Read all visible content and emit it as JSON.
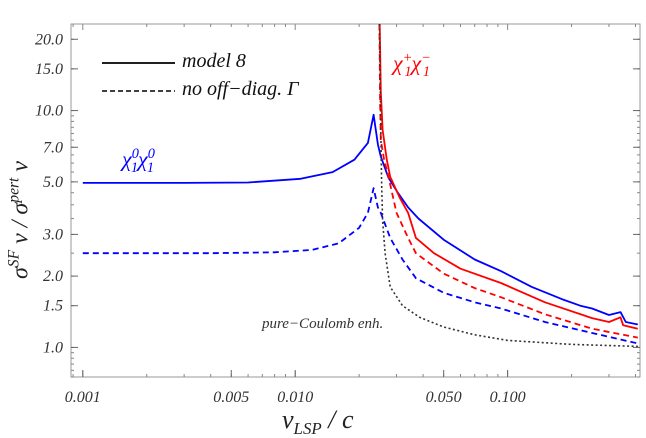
{
  "chart_data": {
    "type": "line",
    "xlabel": {
      "main": "v",
      "sub": "LSP",
      "rest": " / c"
    },
    "ylabel": {
      "s1": "σ",
      "sup1": "SF",
      "mid": " v / σ",
      "sup2": "pert",
      "end": " v"
    },
    "x_scale": "log",
    "y_scale": "log",
    "xlim": [
      0.00088,
      0.42
    ],
    "ylim": [
      0.75,
      23.2
    ],
    "grid": false,
    "x_ticks": [
      {
        "v": 0.001,
        "label": "0.001"
      },
      {
        "v": 0.005,
        "label": "0.005"
      },
      {
        "v": 0.01,
        "label": "0.010"
      },
      {
        "v": 0.05,
        "label": "0.050"
      },
      {
        "v": 0.1,
        "label": "0.100"
      }
    ],
    "y_ticks": [
      {
        "v": 1,
        "label": "1.0"
      },
      {
        "v": 1.5,
        "label": "1.5"
      },
      {
        "v": 2,
        "label": "2.0"
      },
      {
        "v": 3,
        "label": "3.0"
      },
      {
        "v": 5,
        "label": "5.0"
      },
      {
        "v": 7,
        "label": "7.0"
      },
      {
        "v": 10,
        "label": "10.0"
      },
      {
        "v": 15,
        "label": "15.0"
      },
      {
        "v": 20,
        "label": "20.0"
      }
    ],
    "legend": {
      "placement": "top-left",
      "entries": [
        {
          "label": "model 8",
          "style": "solid"
        },
        {
          "label": "no off−diag. Γ",
          "style": "dashed"
        }
      ]
    },
    "annotations": {
      "neutral": {
        "base1": "χ",
        "sup1": "0",
        "sub1": "1",
        "base2": "χ",
        "sup2": "0",
        "sub2": "1",
        "color": "#0000ff"
      },
      "charged": {
        "base1": "χ",
        "sup1": "+",
        "sub1": "1",
        "base2": "χ",
        "sup2": "−",
        "sub2": "1",
        "color": "#ff0000"
      },
      "coulomb": "pure−Coulomb enh."
    },
    "series": [
      {
        "group": "neutral",
        "style": "solid",
        "color": "#0000ff",
        "x": [
          0.001,
          0.003,
          0.006,
          0.0106,
          0.015,
          0.019,
          0.022,
          0.0234,
          0.0245,
          0.0253,
          0.0275,
          0.0304,
          0.034,
          0.038,
          0.05,
          0.07,
          0.093,
          0.13,
          0.18,
          0.22,
          0.25,
          0.3,
          0.34,
          0.36,
          0.41
        ],
        "y": [
          4.95,
          4.95,
          4.97,
          5.15,
          5.5,
          6.2,
          7.3,
          9.6,
          7.2,
          6.4,
          5.2,
          4.5,
          3.9,
          3.5,
          2.85,
          2.35,
          2.1,
          1.8,
          1.6,
          1.5,
          1.46,
          1.37,
          1.41,
          1.28,
          1.25
        ]
      },
      {
        "group": "neutral",
        "style": "dashed",
        "color": "#0000ff",
        "x": [
          0.001,
          0.004,
          0.008,
          0.012,
          0.016,
          0.02,
          0.022,
          0.0234,
          0.0245,
          0.0253,
          0.028,
          0.032,
          0.037,
          0.05,
          0.07,
          0.093,
          0.15,
          0.25,
          0.41
        ],
        "y": [
          2.5,
          2.5,
          2.52,
          2.58,
          2.75,
          3.2,
          3.7,
          4.7,
          3.9,
          3.7,
          2.9,
          2.35,
          1.96,
          1.7,
          1.55,
          1.46,
          1.28,
          1.15,
          1.04
        ]
      },
      {
        "group": "charged",
        "style": "solid",
        "color": "#ff0000",
        "x": [
          0.025,
          0.0253,
          0.0258,
          0.027,
          0.028,
          0.031,
          0.034,
          0.037,
          0.045,
          0.06,
          0.093,
          0.15,
          0.25,
          0.3,
          0.34,
          0.35,
          0.41
        ],
        "y": [
          23.2,
          12,
          8.3,
          6.2,
          5.25,
          4.3,
          3.7,
          2.9,
          2.5,
          2.15,
          1.87,
          1.55,
          1.33,
          1.28,
          1.34,
          1.24,
          1.2
        ]
      },
      {
        "group": "charged",
        "style": "dashed",
        "color": "#ff0000",
        "x": [
          0.0249,
          0.0251,
          0.0253,
          0.0262,
          0.0275,
          0.03,
          0.034,
          0.037,
          0.05,
          0.07,
          0.093,
          0.15,
          0.25,
          0.41
        ],
        "y": [
          23.2,
          11,
          7.5,
          6.2,
          5.25,
          3.7,
          2.9,
          2.5,
          2.05,
          1.78,
          1.63,
          1.38,
          1.2,
          1.1
        ]
      },
      {
        "group": "coulomb",
        "style": "dotted",
        "color": "#333333",
        "x": [
          0.0249,
          0.025,
          0.0252,
          0.0255,
          0.0258,
          0.0265,
          0.028,
          0.032,
          0.0385,
          0.05,
          0.07,
          0.1,
          0.2,
          0.41
        ],
        "y": [
          23.2,
          20,
          10,
          5,
          3.45,
          2.5,
          1.8,
          1.5,
          1.34,
          1.22,
          1.13,
          1.07,
          1.03,
          1.01
        ]
      }
    ]
  }
}
